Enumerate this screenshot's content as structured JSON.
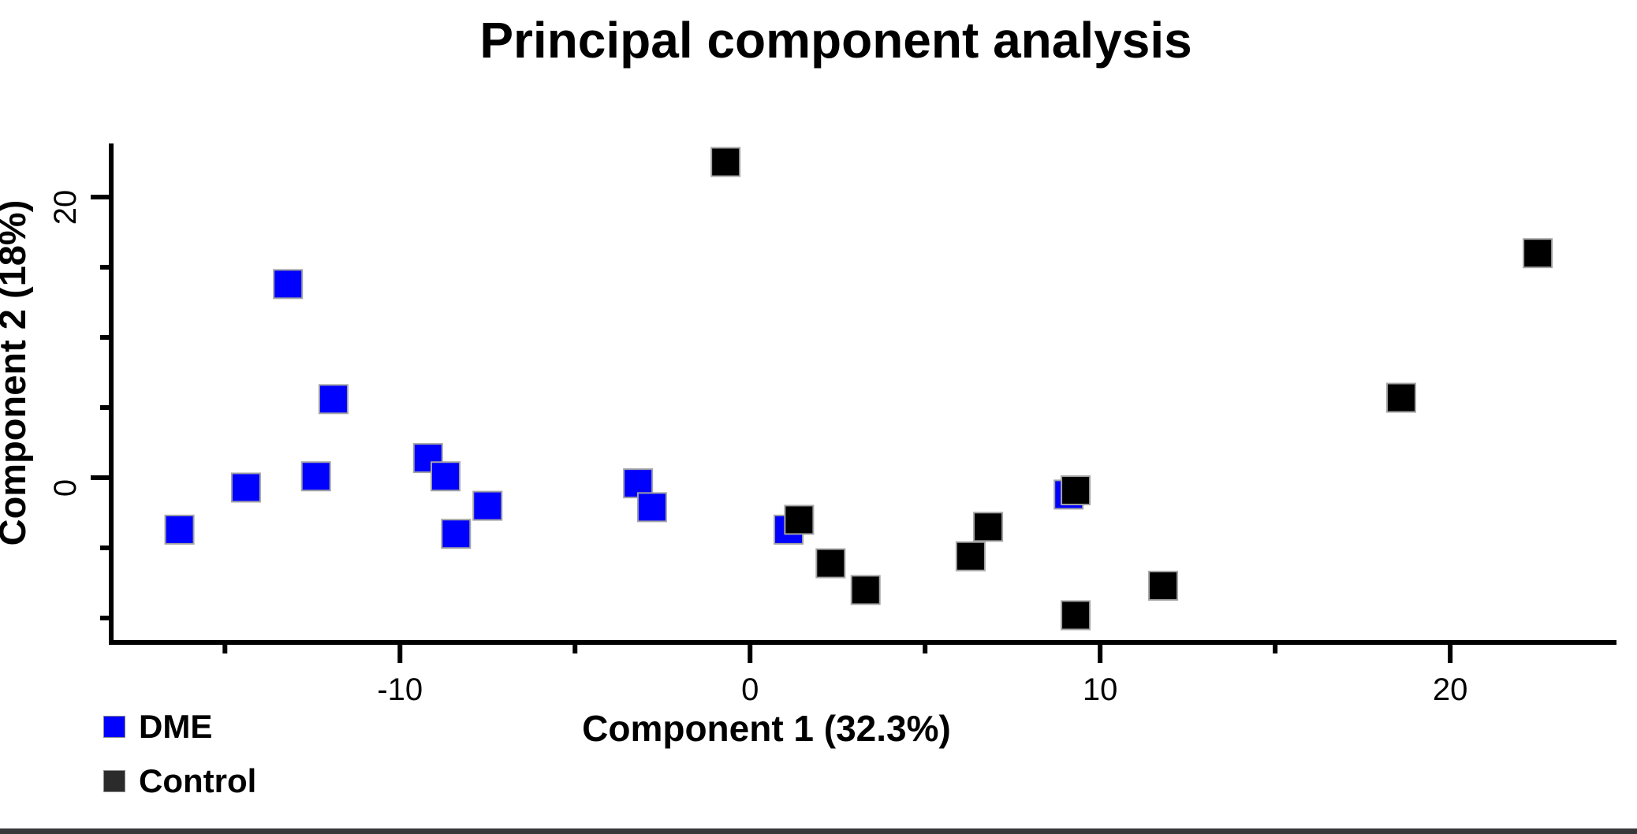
{
  "title": "Principal component analysis",
  "legend": {
    "entries": [
      {
        "label": "DME",
        "swatch_color": "#0000ff"
      },
      {
        "label": "Control",
        "swatch_color": "#2b2b2b"
      }
    ]
  },
  "chart_data": {
    "type": "scatter",
    "title": "Principal component analysis",
    "xlabel": "Component 1 (32.3%)",
    "ylabel": "Component 2 (18%)",
    "xlim": [
      -18.25,
      24.75
    ],
    "ylim": [
      -11.74,
      23.82
    ],
    "grid": false,
    "marker": "square",
    "legend_position": "bottom-left",
    "x_ticks_major": [
      {
        "value": -10,
        "label": "-10"
      },
      {
        "value": 0,
        "label": "0"
      },
      {
        "value": 10,
        "label": "10"
      },
      {
        "value": 20,
        "label": "20"
      }
    ],
    "x_ticks_minor": [
      -15,
      -5,
      5,
      15
    ],
    "y_ticks_major": [
      {
        "value": 0,
        "label": "0"
      },
      {
        "value": 20,
        "label": "20"
      }
    ],
    "y_ticks_minor": [
      -10,
      -5,
      5,
      10,
      15
    ],
    "series": [
      {
        "name": "DME",
        "color": "#0000ff",
        "points": [
          [
            -16.3,
            -3.7
          ],
          [
            -14.4,
            -0.7
          ],
          [
            -13.2,
            13.8
          ],
          [
            -12.4,
            0.1
          ],
          [
            -11.9,
            5.6
          ],
          [
            -9.2,
            1.4
          ],
          [
            -8.7,
            0.1
          ],
          [
            -8.4,
            -4.0
          ],
          [
            -7.5,
            -2.0
          ],
          [
            -3.2,
            -0.4
          ],
          [
            -2.8,
            -2.1
          ],
          [
            1.1,
            -3.7
          ],
          [
            9.1,
            -1.2
          ]
        ]
      },
      {
        "name": "Control",
        "color": "#000000",
        "points": [
          [
            -0.7,
            22.5
          ],
          [
            1.4,
            -3.0
          ],
          [
            2.3,
            -6.1
          ],
          [
            3.3,
            -8.0
          ],
          [
            6.3,
            -5.6
          ],
          [
            6.8,
            -3.5
          ],
          [
            9.3,
            -0.9
          ],
          [
            9.3,
            -9.8
          ],
          [
            11.8,
            -7.7
          ],
          [
            18.6,
            5.7
          ],
          [
            22.5,
            16.0
          ]
        ]
      }
    ]
  }
}
